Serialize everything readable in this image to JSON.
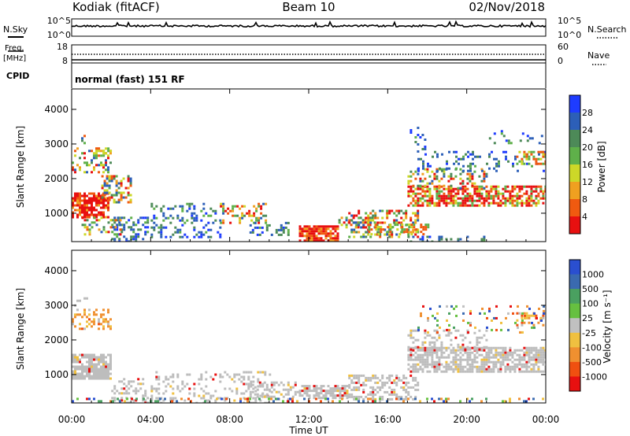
{
  "header": {
    "site": "Kodiak (fitACF)",
    "beam": "Beam 10",
    "date": "02/Nov/2018"
  },
  "colors": {
    "power_scale": [
      "#1e3cff",
      "#2c5fb8",
      "#4d8a58",
      "#5fb04a",
      "#cdd828",
      "#f0a020",
      "#f05a10",
      "#e81010"
    ],
    "velocity_scale": [
      "#2a4fd0",
      "#3a6ab0",
      "#4aa060",
      "#66c040",
      "#c0c0c0",
      "#f0c040",
      "#f09030",
      "#f05010",
      "#e81010"
    ],
    "ground_scatter": "#bdbdbd"
  },
  "chart_data": [
    {
      "name": "nsky-nsearch",
      "type": "line",
      "left_label": "N.Sky",
      "right_label": "N.Search",
      "left_ticks": [
        "10^5",
        "10^0"
      ],
      "right_ticks": [
        "10^5",
        "10^0"
      ]
    },
    {
      "name": "freq-nave",
      "type": "line",
      "left_label_top": "Freq.",
      "left_label_bottom": "[MHz]",
      "right_label": "Nave",
      "left_ticks": [
        18,
        8
      ],
      "right_ticks": [
        60,
        0
      ],
      "cpid_label": "CPID",
      "cpid_text": "normal (fast) 151 RF"
    },
    {
      "name": "power",
      "type": "heatmap",
      "ylabel": "Slant Range [km]",
      "ylim": [
        180,
        4590
      ],
      "yticks": [
        1000,
        2000,
        3000,
        4000
      ],
      "colorbar_label": "Power [dB]",
      "colorbar_ticks": [
        4,
        8,
        12,
        16,
        20,
        24,
        28
      ]
    },
    {
      "name": "velocity",
      "type": "heatmap",
      "ylabel": "Slant Range [km]",
      "ylim": [
        180,
        4590
      ],
      "yticks": [
        1000,
        2000,
        3000,
        4000
      ],
      "colorbar_label": "Velocity [m s⁻¹]",
      "colorbar_ticks": [
        "1000",
        "500",
        "100",
        "25",
        "-25",
        "-100",
        "-500",
        "-1000"
      ]
    }
  ],
  "time_axis": {
    "xlabel": "Time UT",
    "ticks": [
      "00:00",
      "04:00",
      "08:00",
      "12:00",
      "16:00",
      "20:00",
      "00:00"
    ],
    "xlim_hours": [
      0,
      24
    ]
  }
}
